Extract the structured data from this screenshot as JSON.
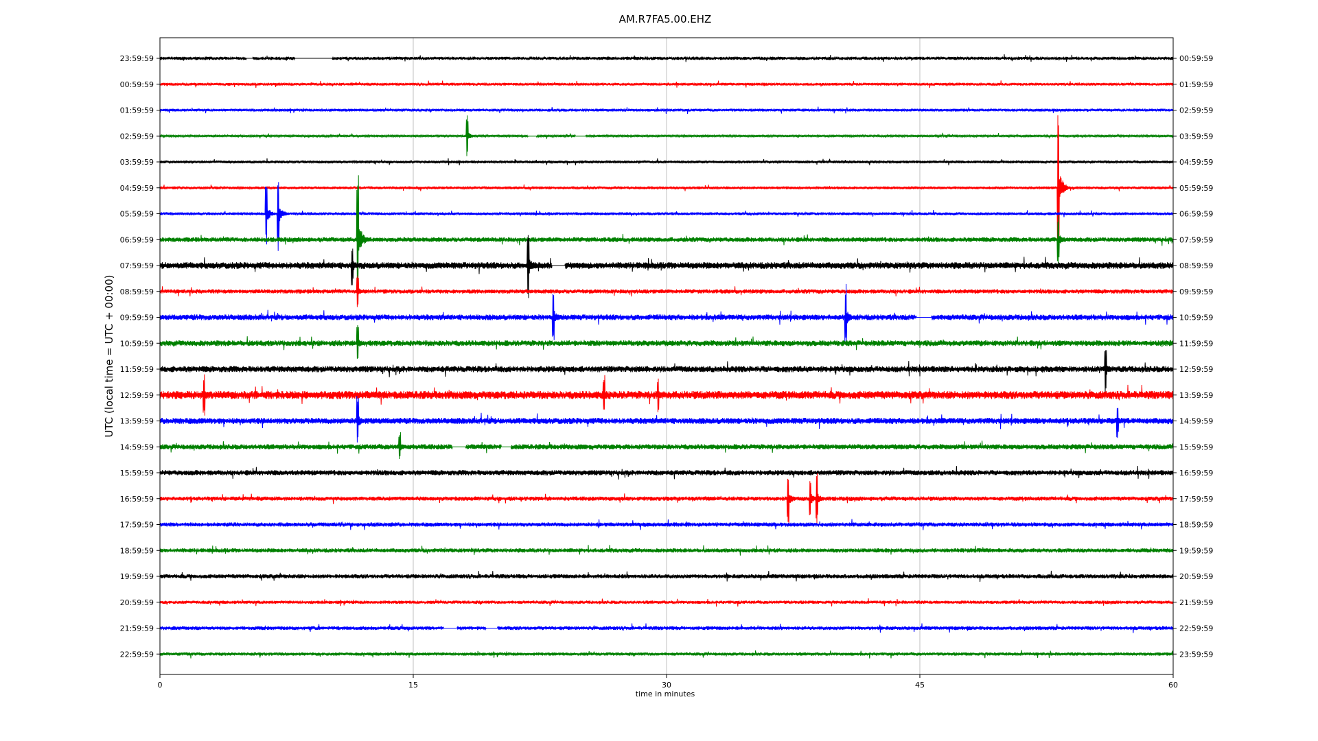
{
  "chart_data": {
    "type": "line",
    "title": "AM.R7FA5.00.EHZ",
    "xlabel": "time in minutes",
    "ylabel": "UTC (local time = UTC + 00:00)",
    "xlim": [
      0,
      60
    ],
    "x_ticks": [
      0,
      15,
      30,
      45,
      60
    ],
    "x_tick_labels": [
      "0",
      "15",
      "30",
      "45",
      "60"
    ],
    "grid_x": true,
    "grid_color": "#b0b0b0",
    "series_colors": [
      "#000000",
      "#ff0000",
      "#0000ff",
      "#008000"
    ],
    "left_tick_labels": [
      "23:59:59",
      "00:59:59",
      "01:59:59",
      "02:59:59",
      "03:59:59",
      "04:59:59",
      "05:59:59",
      "06:59:59",
      "07:59:59",
      "08:59:59",
      "09:59:59",
      "10:59:59",
      "11:59:59",
      "12:59:59",
      "13:59:59",
      "14:59:59",
      "15:59:59",
      "16:59:59",
      "17:59:59",
      "18:59:59",
      "19:59:59",
      "20:59:59",
      "21:59:59",
      "22:59:59"
    ],
    "right_tick_labels": [
      "00:59:59",
      "01:59:59",
      "02:59:59",
      "03:59:59",
      "04:59:59",
      "05:59:59",
      "06:59:59",
      "07:59:59",
      "08:59:59",
      "09:59:59",
      "10:59:59",
      "11:59:59",
      "12:59:59",
      "13:59:59",
      "14:59:59",
      "15:59:59",
      "16:59:59",
      "17:59:59",
      "18:59:59",
      "19:59:59",
      "20:59:59",
      "21:59:59",
      "22:59:59",
      "23:59:59"
    ],
    "trace_noise_level": [
      0.35,
      0.3,
      0.3,
      0.25,
      0.3,
      0.3,
      0.3,
      0.5,
      0.7,
      0.45,
      0.6,
      0.6,
      0.65,
      0.85,
      0.65,
      0.55,
      0.55,
      0.45,
      0.45,
      0.45,
      0.45,
      0.35,
      0.4,
      0.35
    ],
    "events": [
      {
        "trace": 3,
        "minute": 18.2,
        "amplitude": 0.8
      },
      {
        "trace": 5,
        "minute": 53.2,
        "amplitude": 2.8
      },
      {
        "trace": 6,
        "minute": 6.3,
        "amplitude": 1.2
      },
      {
        "trace": 6,
        "minute": 7.0,
        "amplitude": 1.5
      },
      {
        "trace": 7,
        "minute": 11.7,
        "amplitude": 3.0
      },
      {
        "trace": 7,
        "minute": 53.2,
        "amplitude": 1.0
      },
      {
        "trace": 8,
        "minute": 21.8,
        "amplitude": 1.4
      },
      {
        "trace": 8,
        "minute": 11.4,
        "amplitude": 0.8
      },
      {
        "trace": 9,
        "minute": 11.7,
        "amplitude": 0.8
      },
      {
        "trace": 10,
        "minute": 23.3,
        "amplitude": 1.1
      },
      {
        "trace": 10,
        "minute": 40.6,
        "amplitude": 1.3
      },
      {
        "trace": 11,
        "minute": 11.7,
        "amplitude": 0.8
      },
      {
        "trace": 12,
        "minute": 56.0,
        "amplitude": 1.0
      },
      {
        "trace": 13,
        "minute": 2.6,
        "amplitude": 0.8
      },
      {
        "trace": 13,
        "minute": 26.3,
        "amplitude": 0.8
      },
      {
        "trace": 13,
        "minute": 29.5,
        "amplitude": 0.7
      },
      {
        "trace": 14,
        "minute": 11.7,
        "amplitude": 1.0
      },
      {
        "trace": 14,
        "minute": 56.7,
        "amplitude": 0.7
      },
      {
        "trace": 15,
        "minute": 14.2,
        "amplitude": 0.6
      },
      {
        "trace": 17,
        "minute": 37.2,
        "amplitude": 1.1
      },
      {
        "trace": 17,
        "minute": 38.5,
        "amplitude": 1.0
      },
      {
        "trace": 17,
        "minute": 38.9,
        "amplitude": 1.0
      }
    ],
    "flat_gaps": [
      {
        "trace": 0,
        "from": 5.1,
        "to": 5.5
      },
      {
        "trace": 0,
        "from": 8.0,
        "to": 10.2
      },
      {
        "trace": 3,
        "from": 21.8,
        "to": 22.3
      },
      {
        "trace": 3,
        "from": 24.6,
        "to": 25.2
      },
      {
        "trace": 8,
        "from": 23.2,
        "to": 24.0
      },
      {
        "trace": 10,
        "from": 44.8,
        "to": 45.7
      },
      {
        "trace": 15,
        "from": 17.3,
        "to": 18.1
      },
      {
        "trace": 15,
        "from": 20.2,
        "to": 20.8
      },
      {
        "trace": 22,
        "from": 16.8,
        "to": 17.6
      },
      {
        "trace": 22,
        "from": 19.3,
        "to": 20.0
      }
    ]
  }
}
